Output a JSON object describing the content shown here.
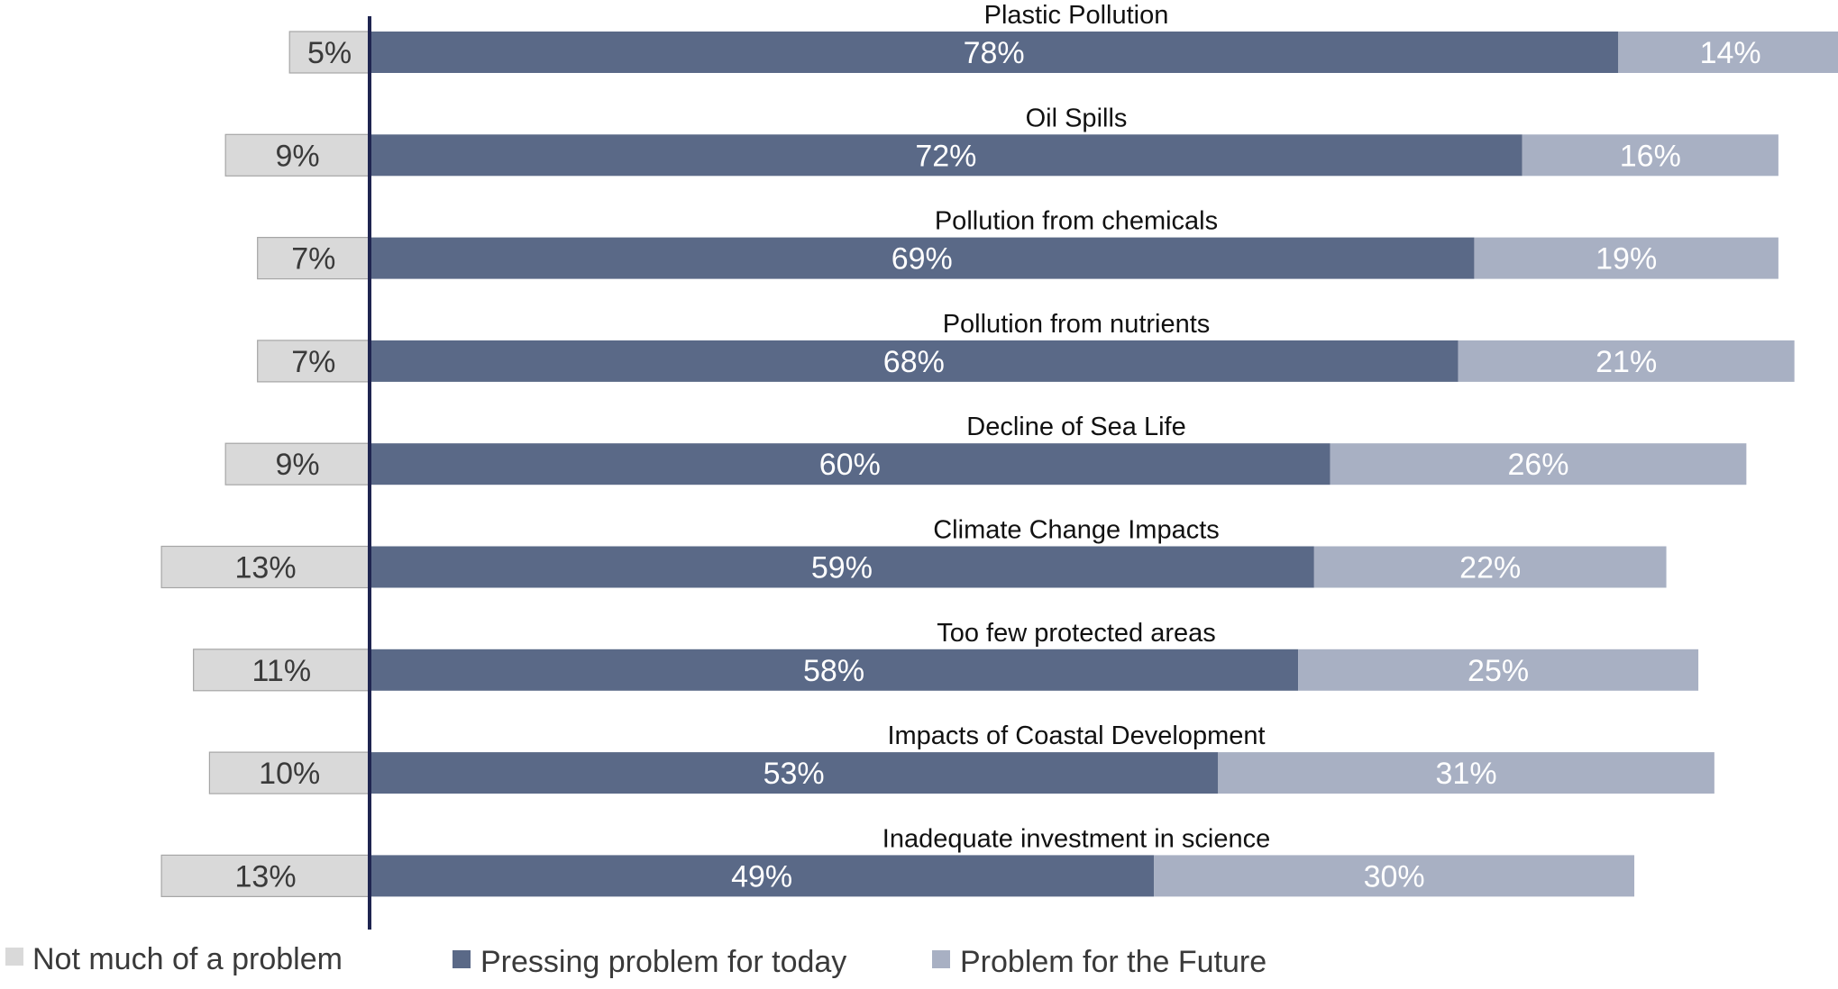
{
  "chart_data": {
    "type": "bar",
    "orientation": "horizontal",
    "stacked": true,
    "diverging": true,
    "categories": [
      "Plastic Pollution",
      "Oil Spills",
      "Pollution from chemicals",
      "Pollution from nutrients",
      "Decline of Sea Life",
      "Climate Change Impacts",
      "Too few protected areas",
      "Impacts of Coastal Development",
      "Inadequate investment in science"
    ],
    "series": [
      {
        "name": "Not much of a problem",
        "color": "#d9d9d9",
        "label_color": "#3a3a3a",
        "values": [
          5,
          9,
          7,
          7,
          9,
          13,
          11,
          10,
          13
        ]
      },
      {
        "name": "Pressing problem for today",
        "color": "#5a6987",
        "label_color": "#ffffff",
        "values": [
          78,
          72,
          69,
          68,
          60,
          59,
          58,
          53,
          49
        ]
      },
      {
        "name": "Problem for the Future",
        "color": "#a8b0c3",
        "label_color": "#ffffff",
        "values": [
          14,
          16,
          19,
          21,
          26,
          22,
          25,
          31,
          30
        ]
      }
    ],
    "value_suffix": "%",
    "legend": "bottom",
    "title": "",
    "xlabel": "",
    "ylabel": "",
    "grid": false
  }
}
